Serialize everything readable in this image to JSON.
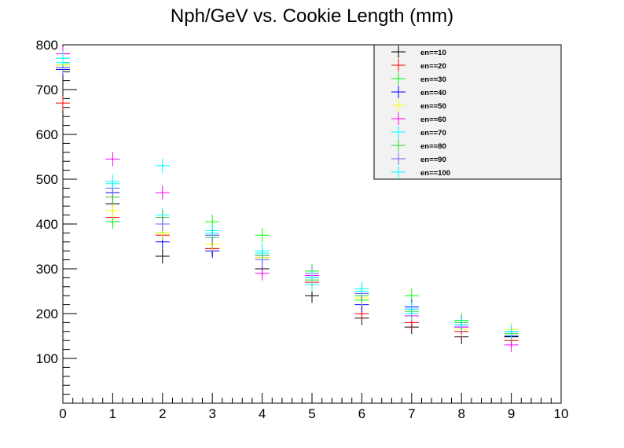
{
  "chart_data": {
    "type": "scatter",
    "title": "Nph/GeV vs. Cookie Length (mm)",
    "xlabel": "",
    "ylabel": "",
    "xlim": [
      0,
      10
    ],
    "ylim": [
      0,
      800
    ],
    "xticks": [
      0,
      1,
      2,
      3,
      4,
      5,
      6,
      7,
      8,
      9,
      10
    ],
    "yticks": [
      100,
      200,
      300,
      400,
      500,
      600,
      700,
      800
    ],
    "grid": false,
    "legend_position": "top-right",
    "marker": "cross",
    "series": [
      {
        "name": "en==10",
        "color": "#000000",
        "x": [
          0,
          1,
          2,
          3,
          4,
          5,
          6,
          7,
          8,
          9
        ],
        "y": [
          745,
          445,
          328,
          345,
          300,
          240,
          190,
          170,
          148,
          148
        ]
      },
      {
        "name": "en==20",
        "color": "#ff0000",
        "x": [
          0,
          1,
          2,
          3,
          4,
          5,
          6,
          7,
          8,
          9
        ],
        "y": [
          670,
          415,
          375,
          345,
          325,
          270,
          200,
          180,
          160,
          140
        ]
      },
      {
        "name": "en==30",
        "color": "#00ff00",
        "x": [
          0,
          1,
          2,
          3,
          4,
          5,
          6,
          7,
          8,
          9
        ],
        "y": [
          755,
          405,
          380,
          405,
          375,
          295,
          230,
          240,
          185,
          150
        ]
      },
      {
        "name": "en==40",
        "color": "#0000ff",
        "x": [
          0,
          1,
          2,
          3,
          4,
          5,
          6,
          7,
          8,
          9
        ],
        "y": [
          745,
          470,
          360,
          340,
          330,
          280,
          220,
          215,
          170,
          150
        ]
      },
      {
        "name": "en==50",
        "color": "#ffff00",
        "x": [
          0,
          1,
          2,
          3,
          4,
          5,
          6,
          7,
          8,
          9
        ],
        "y": [
          755,
          430,
          380,
          355,
          325,
          275,
          235,
          200,
          165,
          165
        ]
      },
      {
        "name": "en==60",
        "color": "#ff00ff",
        "x": [
          0,
          1,
          2,
          3,
          4,
          5,
          6,
          7,
          8,
          9
        ],
        "y": [
          780,
          545,
          470,
          375,
          290,
          285,
          245,
          195,
          170,
          130
        ]
      },
      {
        "name": "en==70",
        "color": "#00ffff",
        "x": [
          0,
          1,
          2,
          3,
          4,
          5,
          6,
          7,
          8,
          9
        ],
        "y": [
          760,
          490,
          420,
          380,
          340,
          265,
          250,
          200,
          180,
          155
        ]
      },
      {
        "name": "en==80",
        "color": "#33cc33",
        "x": [
          0,
          1,
          2,
          3,
          4,
          5,
          6,
          7,
          8,
          9
        ],
        "y": [
          770,
          460,
          415,
          370,
          330,
          275,
          240,
          205,
          180,
          155
        ]
      },
      {
        "name": "en==90",
        "color": "#6666ff",
        "x": [
          0,
          1,
          2,
          3,
          4,
          5,
          6,
          7,
          8,
          9
        ],
        "y": [
          750,
          480,
          400,
          375,
          320,
          290,
          245,
          210,
          175,
          160
        ]
      },
      {
        "name": "en==100",
        "color": "#00ffff",
        "x": [
          0,
          1,
          2,
          3,
          4,
          5,
          6,
          7,
          8,
          9
        ],
        "y": [
          770,
          495,
          530,
          385,
          335,
          280,
          255,
          210,
          175,
          160
        ]
      }
    ]
  }
}
